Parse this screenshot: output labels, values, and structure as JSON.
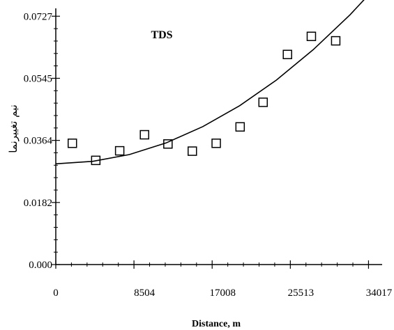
{
  "chart_data": {
    "type": "scatter",
    "title": "TDS",
    "xlabel": "Distance, m",
    "ylabel": "نیم تغییرنما",
    "xlim": [
      0,
      35500
    ],
    "ylim": [
      0,
      0.075
    ],
    "x_ticks": [
      "0",
      "8504",
      "17008",
      "25513",
      "34017"
    ],
    "y_ticks": [
      "0.000",
      "0.0182",
      "0.0364",
      "0.0545",
      "0.0727"
    ],
    "grid": false,
    "legend": "none",
    "series": [
      {
        "points": [
          {
            "x": 1800,
            "y": 0.0355
          },
          {
            "x": 4350,
            "y": 0.0305
          },
          {
            "x": 6950,
            "y": 0.0333
          },
          {
            "x": 9650,
            "y": 0.038
          },
          {
            "x": 12200,
            "y": 0.0353
          },
          {
            "x": 14850,
            "y": 0.0332
          },
          {
            "x": 17450,
            "y": 0.0355
          },
          {
            "x": 20050,
            "y": 0.0403
          },
          {
            "x": 22550,
            "y": 0.0475
          },
          {
            "x": 25200,
            "y": 0.0615
          },
          {
            "x": 27800,
            "y": 0.0668
          },
          {
            "x": 30450,
            "y": 0.0655
          }
        ],
        "marker": "open-square",
        "color": "#000000"
      }
    ],
    "fit_curve": {
      "type": "polynomial",
      "color": "#000000",
      "points": [
        {
          "x": 0,
          "y": 0.0295
        },
        {
          "x": 4000,
          "y": 0.0302
        },
        {
          "x": 8000,
          "y": 0.0322
        },
        {
          "x": 12000,
          "y": 0.0356
        },
        {
          "x": 16000,
          "y": 0.0404
        },
        {
          "x": 20000,
          "y": 0.0465
        },
        {
          "x": 24000,
          "y": 0.054
        },
        {
          "x": 28000,
          "y": 0.0629
        },
        {
          "x": 32000,
          "y": 0.0731
        },
        {
          "x": 35500,
          "y": 0.0832
        }
      ]
    }
  }
}
